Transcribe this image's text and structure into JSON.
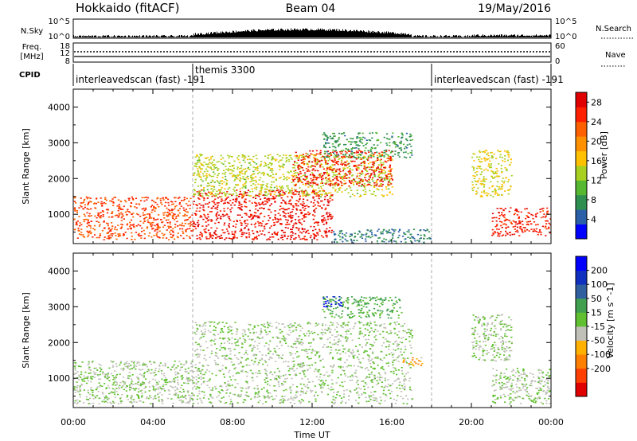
{
  "header": {
    "station": "Hokkaido (fitACF)",
    "beam": "Beam 04",
    "date": "19/May/2016"
  },
  "top_panels": {
    "nsky_label": "N.Sky",
    "nsearch_label": "N.Search",
    "nsky_ticks": [
      "10^5",
      "10^0"
    ],
    "nsearch_ticks": [
      "10^5",
      "10^0"
    ],
    "freq_label_1": "Freq.",
    "freq_label_2": "[MHz]",
    "freq_ticks": [
      "18",
      "12",
      "8"
    ],
    "nave_label": "Nave",
    "nave_ticks": [
      "60",
      "0"
    ],
    "cpid_label": "CPID",
    "cpid_segments": [
      {
        "start_hour": 0,
        "end_hour": 6,
        "text": "interleavedscan (fast) -191"
      },
      {
        "start_hour": 6,
        "end_hour": 18,
        "text": "themis 3300"
      },
      {
        "start_hour": 18,
        "end_hour": 24,
        "text": "interleavedscan (fast) -191"
      }
    ]
  },
  "chart_data": [
    {
      "type": "heatmap",
      "title": "",
      "xlabel": "Time UT",
      "ylabel": "Slant Range [km]",
      "xlim": [
        0,
        24
      ],
      "ylim": [
        180,
        4500
      ],
      "x_ticks": [
        "00:00",
        "04:00",
        "08:00",
        "12:00",
        "16:00",
        "20:00",
        "00:00"
      ],
      "y_ticks": [
        1000,
        2000,
        3000,
        4000
      ],
      "colorbar": {
        "label": "Power [dB]",
        "ticks": [
          4,
          8,
          12,
          16,
          20,
          24,
          28
        ],
        "range": [
          0,
          30
        ],
        "colors": [
          "#0000ff",
          "#2b60a8",
          "#2f8f50",
          "#55b830",
          "#a8d020",
          "#ffc000",
          "#ff9000",
          "#ff6000",
          "#ff2000",
          "#e00000"
        ]
      },
      "features": [
        {
          "t_start": 0,
          "t_end": 6,
          "r_low": 300,
          "r_high": 1500,
          "value": 24
        },
        {
          "t_start": 6,
          "t_end": 13,
          "r_low": 300,
          "r_high": 1700,
          "value": 27
        },
        {
          "t_start": 6,
          "t_end": 16,
          "r_low": 1500,
          "r_high": 2700,
          "value": 14
        },
        {
          "t_start": 11,
          "t_end": 16,
          "r_low": 1800,
          "r_high": 2800,
          "value": 26
        },
        {
          "t_start": 12.5,
          "t_end": 17,
          "r_low": 2600,
          "r_high": 3300,
          "value": 8
        },
        {
          "t_start": 13,
          "t_end": 18,
          "r_low": 200,
          "r_high": 600,
          "value": 6
        },
        {
          "t_start": 21,
          "t_end": 24,
          "r_low": 400,
          "r_high": 1200,
          "value": 26
        },
        {
          "t_start": 20,
          "t_end": 22,
          "r_low": 1500,
          "r_high": 2800,
          "value": 15
        }
      ]
    },
    {
      "type": "heatmap",
      "title": "",
      "xlabel": "Time UT",
      "ylabel": "Slant Range [km]",
      "xlim": [
        0,
        24
      ],
      "ylim": [
        180,
        4500
      ],
      "x_ticks": [
        "00:00",
        "04:00",
        "08:00",
        "12:00",
        "16:00",
        "20:00",
        "00:00"
      ],
      "y_ticks": [
        1000,
        2000,
        3000,
        4000
      ],
      "colorbar": {
        "label": "Velocity [m s^-1]",
        "ticks": [
          200,
          100,
          50,
          15,
          -15,
          -50,
          -100,
          -200
        ],
        "range": [
          -250,
          250
        ],
        "colors": [
          "#e00000",
          "#ff4000",
          "#ff8000",
          "#ffb000",
          "#c0c0b8",
          "#60c030",
          "#40a050",
          "#3060a0",
          "#1030c0",
          "#0000ff"
        ]
      },
      "features": [
        {
          "t_start": 0,
          "t_end": 6,
          "r_low": 300,
          "r_high": 1500,
          "value": 0
        },
        {
          "t_start": 6,
          "t_end": 17,
          "r_low": 300,
          "r_high": 2600,
          "value": 0
        },
        {
          "t_start": 12.5,
          "t_end": 16.5,
          "r_low": 2700,
          "r_high": 3300,
          "value": 60
        },
        {
          "t_start": 12.5,
          "t_end": 13.5,
          "r_low": 3000,
          "r_high": 3300,
          "value": 200
        },
        {
          "t_start": 16.5,
          "t_end": 17.5,
          "r_low": 1350,
          "r_high": 1600,
          "value": -80
        },
        {
          "t_start": 21,
          "t_end": 24,
          "r_low": 300,
          "r_high": 1300,
          "value": 0
        },
        {
          "t_start": 20,
          "t_end": 22,
          "r_low": 1500,
          "r_high": 2800,
          "value": 0
        }
      ]
    }
  ]
}
